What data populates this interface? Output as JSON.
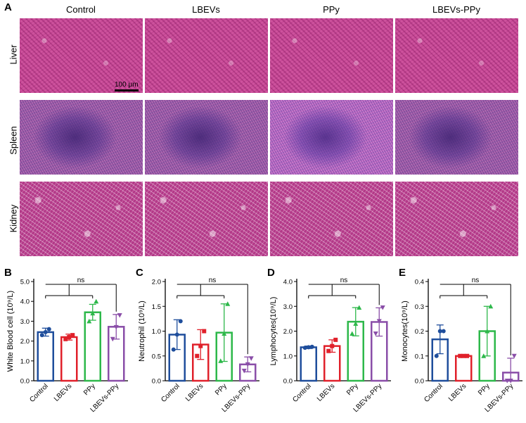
{
  "histology": {
    "panel_label": "A",
    "columns": [
      "Control",
      "LBEVs",
      "PPy",
      "LBEVs-PPy"
    ],
    "rows": [
      "Liver",
      "Spleen",
      "Kidney"
    ],
    "scale_bar": "100 μm"
  },
  "colors": {
    "Control": "#1f4e9c",
    "LBEVs": "#e0202a",
    "PPy": "#2db84a",
    "LBEVs-PPy": "#8a4ea8"
  },
  "chart_data": [
    {
      "panel": "B",
      "type": "bar",
      "ylabel": "White Blood cell (10⁹/L)",
      "categories": [
        "Control",
        "LBEVs",
        "PPy",
        "LBEVs-PPy"
      ],
      "values": [
        2.45,
        2.2,
        3.45,
        2.72
      ],
      "errors": [
        0.2,
        0.15,
        0.4,
        0.62
      ],
      "points": [
        [
          2.3,
          2.45,
          2.6
        ],
        [
          2.1,
          2.2,
          2.3
        ],
        [
          3.0,
          3.4,
          4.0
        ],
        [
          2.1,
          2.7,
          3.3
        ]
      ],
      "ylim": [
        0,
        5
      ],
      "yticks": [
        "0.0",
        "1.0",
        "2.0",
        "3.0",
        "4.0",
        "5.0"
      ],
      "ytick_values": [
        0,
        1,
        2,
        3,
        4,
        5
      ],
      "significance": "ns"
    },
    {
      "panel": "C",
      "type": "bar",
      "ylabel": "Neutrophil (10⁹/L)",
      "categories": [
        "Control",
        "LBEVs",
        "PPy",
        "LBEVs-PPy"
      ],
      "values": [
        0.93,
        0.73,
        0.97,
        0.33
      ],
      "errors": [
        0.3,
        0.3,
        0.58,
        0.15
      ],
      "points": [
        [
          0.63,
          0.93,
          1.2
        ],
        [
          0.5,
          0.7,
          1.0
        ],
        [
          0.4,
          0.95,
          1.55
        ],
        [
          0.2,
          0.33,
          0.45
        ]
      ],
      "ylim": [
        0,
        2
      ],
      "yticks": [
        "0.0",
        "0.5",
        "1.0",
        "1.5",
        "2.0"
      ],
      "ytick_values": [
        0,
        0.5,
        1,
        1.5,
        2
      ],
      "significance": "ns"
    },
    {
      "panel": "D",
      "type": "bar",
      "ylabel": "Lymphocytes(10⁹/L)",
      "categories": [
        "Control",
        "LBEVs",
        "PPy",
        "LBEVs-PPy"
      ],
      "values": [
        1.35,
        1.4,
        2.38,
        2.37
      ],
      "errors": [
        0.05,
        0.25,
        0.57,
        0.57
      ],
      "points": [
        [
          1.33,
          1.35,
          1.37
        ],
        [
          1.2,
          1.4,
          1.65
        ],
        [
          1.9,
          2.3,
          2.95
        ],
        [
          1.9,
          2.4,
          2.95
        ]
      ],
      "ylim": [
        0,
        4
      ],
      "yticks": [
        "0.0",
        "1.0",
        "2.0",
        "3.0",
        "4.0"
      ],
      "ytick_values": [
        0,
        1,
        2,
        3,
        4
      ],
      "significance": "ns"
    },
    {
      "panel": "E",
      "type": "bar",
      "ylabel": "Monocytes(10⁹/L)",
      "categories": [
        "Control",
        "LBEVs",
        "PPy",
        "LBEVs-PPy"
      ],
      "values": [
        0.167,
        0.1,
        0.2,
        0.033
      ],
      "errors": [
        0.058,
        0.0,
        0.1,
        0.058
      ],
      "points": [
        [
          0.1,
          0.2,
          0.2
        ],
        [
          0.1,
          0.1,
          0.1
        ],
        [
          0.1,
          0.2,
          0.3
        ],
        [
          0.0,
          0.0,
          0.1
        ]
      ],
      "ylim": [
        0,
        0.4
      ],
      "yticks": [
        "0.0",
        "0.1",
        "0.2",
        "0.3",
        "0.4"
      ],
      "ytick_values": [
        0,
        0.1,
        0.2,
        0.3,
        0.4
      ],
      "significance": "ns"
    }
  ]
}
